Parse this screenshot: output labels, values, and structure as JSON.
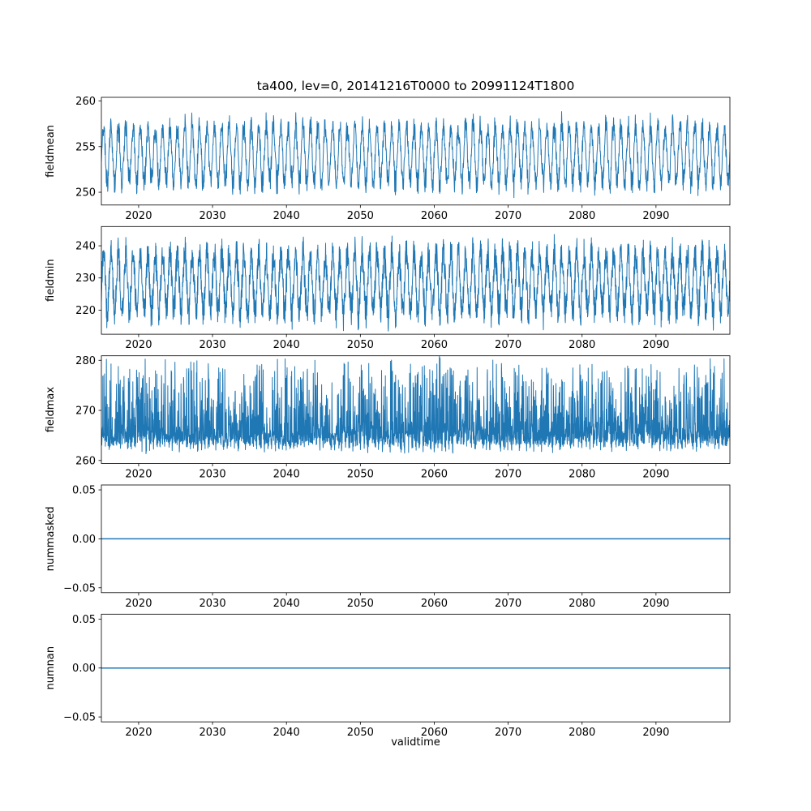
{
  "figure": {
    "title": "ta400, lev=0, 20141216T0000 to 20991124T1800",
    "xlabel": "validtime",
    "background": "#ffffff"
  },
  "chart_data": {
    "type": "line",
    "title": "ta400, lev=0, 20141216T0000 to 20991124T1800",
    "xlabel": "validtime",
    "grid": false,
    "legend": false,
    "line_color": "#1f77b4",
    "x_range": [
      2014.96,
      2100.0
    ],
    "xticks": [
      2020,
      2030,
      2040,
      2050,
      2060,
      2070,
      2080,
      2090
    ],
    "xtick_labels": [
      "2020",
      "2030",
      "2040",
      "2050",
      "2060",
      "2070",
      "2080",
      "2090"
    ],
    "subplots": [
      {
        "ylabel": "fieldmean",
        "ylim": [
          248.6,
          260.4
        ],
        "yticks": [
          250,
          255,
          260
        ],
        "ytick_labels": [
          "250",
          "255",
          "260"
        ],
        "series": {
          "name": "fieldmean",
          "kind": "seasonal",
          "seed": 11,
          "n": 2600,
          "mean": 254.1,
          "amp": 3.1,
          "amp_jitter": 0.9,
          "noise": 0.9,
          "observed_min": 249.0,
          "observed_max": 259.7,
          "description": "annual oscillation of field mean, roughly 249 to 259.7"
        }
      },
      {
        "ylabel": "fieldmin",
        "ylim": [
          212.5,
          246.0
        ],
        "yticks": [
          220,
          230,
          240
        ],
        "ytick_labels": [
          "220",
          "230",
          "240"
        ],
        "series": {
          "name": "fieldmin",
          "kind": "seasonal",
          "seed": 23,
          "n": 3000,
          "mean": 228.5,
          "amp": 9.0,
          "amp_jitter": 2.0,
          "noise": 4.5,
          "observed_min": 213.5,
          "observed_max": 245.0,
          "description": "dense annual oscillation of field minimum, roughly 214 to 245"
        }
      },
      {
        "ylabel": "fieldmax",
        "ylim": [
          259.4,
          280.9
        ],
        "yticks": [
          260,
          270,
          280
        ],
        "ytick_labels": [
          "260",
          "270",
          "280"
        ],
        "series": {
          "name": "fieldmax",
          "kind": "spiky",
          "seed": 37,
          "n": 3000,
          "base": 262.6,
          "band": 2.0,
          "jitter": 1.4,
          "spike": 15.5,
          "power": 4,
          "observed_min": 260.5,
          "observed_max": 280.2,
          "description": "baseline near 262-266 with upward spikes reaching about 280"
        }
      },
      {
        "ylabel": "nummasked",
        "ylim": [
          -0.055,
          0.055
        ],
        "yticks": [
          0.05,
          0.0,
          -0.05
        ],
        "ytick_labels": [
          "0.05",
          "0.00",
          "−0.05"
        ],
        "series": {
          "name": "nummasked",
          "kind": "constant",
          "value": 0.0,
          "description": "constant zero line for entire period"
        }
      },
      {
        "ylabel": "numnan",
        "ylim": [
          -0.055,
          0.055
        ],
        "yticks": [
          0.05,
          0.0,
          -0.05
        ],
        "ytick_labels": [
          "0.05",
          "0.00",
          "−0.05"
        ],
        "series": {
          "name": "numnan",
          "kind": "constant",
          "value": 0.0,
          "description": "constant zero line for entire period"
        }
      }
    ]
  }
}
